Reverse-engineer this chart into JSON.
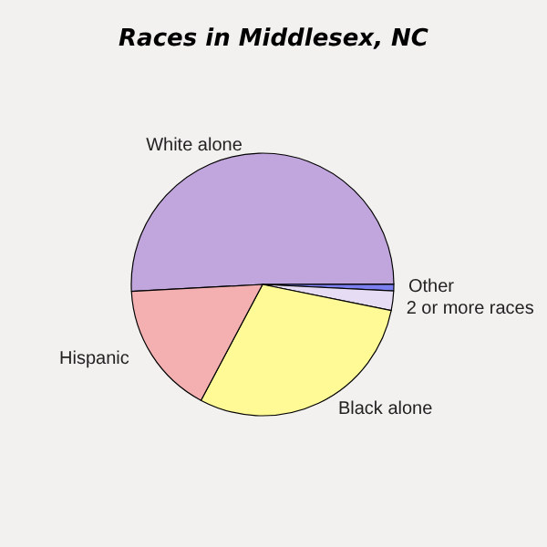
{
  "chart_data": {
    "type": "pie",
    "title": "Races in Middlesex, NC",
    "categories": [
      "White alone",
      "Other",
      "2 or more races",
      "Black alone",
      "Hispanic"
    ],
    "values": [
      50.8,
      0.8,
      2.4,
      29.6,
      16.4
    ],
    "colors": [
      "#c0a6dc",
      "#7b7ff0",
      "#e6dcf4",
      "#fffa96",
      "#f4b0b0"
    ]
  }
}
